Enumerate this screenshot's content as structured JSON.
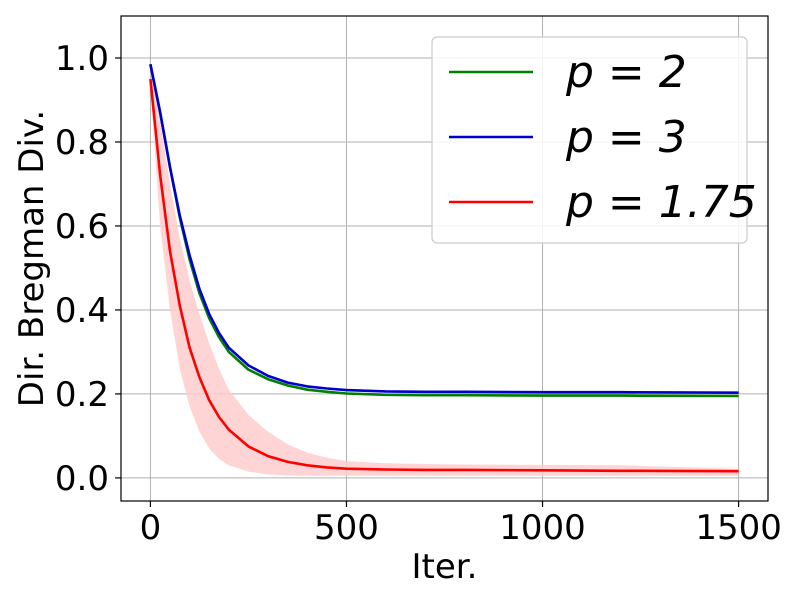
{
  "chart_data": {
    "type": "line",
    "xlabel": "Iter.",
    "ylabel": "Dir. Bregman Div.",
    "xlim": [
      -75,
      1575
    ],
    "ylim": [
      -0.055,
      1.1
    ],
    "xticks": [
      0,
      500,
      1000,
      1500
    ],
    "xtick_labels": [
      "0",
      "500",
      "1000",
      "1500"
    ],
    "yticks": [
      0.0,
      0.2,
      0.4,
      0.6,
      0.8,
      1.0
    ],
    "ytick_labels": [
      "0.0",
      "0.2",
      "0.4",
      "0.6",
      "0.8",
      "1.0"
    ],
    "grid": true,
    "legend_position": "top-right",
    "series": [
      {
        "name": "p = 2",
        "color": "#008000",
        "x": [
          0,
          25,
          50,
          75,
          100,
          125,
          150,
          175,
          200,
          250,
          300,
          350,
          400,
          450,
          500,
          600,
          700,
          800,
          1000,
          1200,
          1500
        ],
        "y": [
          0.985,
          0.87,
          0.74,
          0.62,
          0.52,
          0.44,
          0.38,
          0.335,
          0.3,
          0.258,
          0.235,
          0.22,
          0.21,
          0.205,
          0.201,
          0.198,
          0.197,
          0.197,
          0.196,
          0.196,
          0.195
        ]
      },
      {
        "name": "p = 3",
        "color": "#0000cc",
        "x": [
          0,
          25,
          50,
          75,
          100,
          125,
          150,
          175,
          200,
          250,
          300,
          350,
          400,
          450,
          500,
          600,
          700,
          800,
          1000,
          1200,
          1500
        ],
        "y": [
          0.985,
          0.87,
          0.74,
          0.625,
          0.53,
          0.45,
          0.39,
          0.345,
          0.31,
          0.268,
          0.243,
          0.227,
          0.218,
          0.213,
          0.209,
          0.206,
          0.205,
          0.205,
          0.204,
          0.204,
          0.203
        ]
      },
      {
        "name": "p = 1.75",
        "color": "#ff0000",
        "band_color": "#ffcccc",
        "x": [
          0,
          25,
          50,
          75,
          100,
          125,
          150,
          175,
          200,
          250,
          300,
          350,
          400,
          450,
          500,
          600,
          700,
          800,
          1000,
          1200,
          1500
        ],
        "y": [
          0.95,
          0.72,
          0.54,
          0.41,
          0.31,
          0.24,
          0.185,
          0.145,
          0.115,
          0.075,
          0.052,
          0.038,
          0.03,
          0.025,
          0.022,
          0.02,
          0.019,
          0.019,
          0.018,
          0.017,
          0.016
        ],
        "y_lower": [
          0.93,
          0.6,
          0.4,
          0.26,
          0.17,
          0.11,
          0.07,
          0.045,
          0.03,
          0.015,
          0.008,
          0.006,
          0.005,
          0.005,
          0.005,
          0.005,
          0.005,
          0.005,
          0.005,
          0.005,
          0.005
        ],
        "y_upper": [
          0.99,
          0.85,
          0.7,
          0.57,
          0.47,
          0.39,
          0.32,
          0.26,
          0.21,
          0.15,
          0.11,
          0.08,
          0.06,
          0.048,
          0.04,
          0.035,
          0.033,
          0.032,
          0.031,
          0.03,
          0.022
        ]
      }
    ]
  }
}
